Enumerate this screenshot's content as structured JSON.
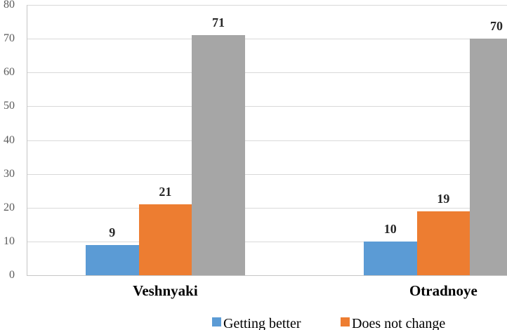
{
  "chart_data": {
    "type": "bar",
    "title": "",
    "xlabel": "",
    "ylabel": "",
    "categories": [
      "Veshnyaki",
      "Otradnoye"
    ],
    "series": [
      {
        "name": "Getting better",
        "color": "#5B9BD5",
        "values": [
          9,
          10
        ],
        "legend_visible": true
      },
      {
        "name": "Does not change",
        "color": "#ED7D31",
        "values": [
          21,
          19
        ],
        "legend_visible": true
      },
      {
        "name": "",
        "color": "#A6A6A6",
        "values": [
          71,
          70
        ],
        "legend_visible": false
      }
    ],
    "ylim": [
      0,
      80
    ],
    "yticks": [
      0,
      10,
      20,
      30,
      40,
      50,
      60,
      70,
      80
    ],
    "grid": true,
    "data_labels": true,
    "legend_position": "bottom",
    "note": "third (gray) series legend entry is cropped out of the visible image; rightmost gray bar is clipped by the image edge"
  },
  "colors": {
    "background": "#FFFFFF",
    "gridline": "#D9D9D9",
    "axis_line": "#C6C6C6",
    "tick_label": "#595959",
    "data_label": "#262626",
    "category_label": "#000000",
    "legend_text": "#000000"
  }
}
